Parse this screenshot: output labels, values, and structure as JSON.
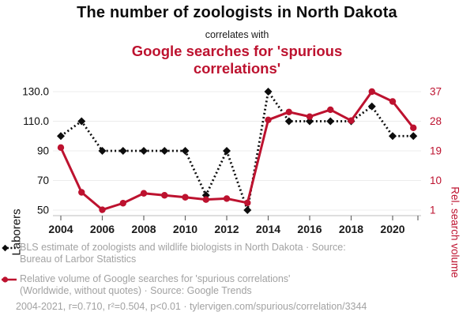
{
  "header": {
    "title_line1": "The number of zoologists in North Dakota",
    "connector": "correlates with",
    "title_line2": "Google searches for 'spurious correlations'"
  },
  "chart_data": {
    "type": "line",
    "x": [
      2004,
      2005,
      2006,
      2007,
      2008,
      2009,
      2010,
      2011,
      2012,
      2013,
      2014,
      2015,
      2016,
      2017,
      2018,
      2019,
      2020,
      2021
    ],
    "x_tick_labels": [
      "2004",
      "2006",
      "2008",
      "2010",
      "2012",
      "2014",
      "2016",
      "2018",
      "2020"
    ],
    "series": [
      {
        "name": "BLS estimate of zoologists and wildlife biologists in North Dakota",
        "axis": "left",
        "style": "dotted",
        "marker": "diamond",
        "color": "#0d0d0d",
        "values": [
          100,
          110,
          90,
          90,
          90,
          90,
          90,
          60,
          90,
          50,
          130,
          110,
          110,
          110,
          110,
          120,
          100,
          100
        ]
      },
      {
        "name": "Relative volume of Google searches for 'spurious correlations'",
        "axis": "right",
        "style": "solid",
        "marker": "circle",
        "color": "#bd122f",
        "values": [
          20,
          6.4,
          1.1,
          3.1,
          6.1,
          5.5,
          4.9,
          4.2,
          4.5,
          3.2,
          28.4,
          30.8,
          29.4,
          31.5,
          28.2,
          37,
          34,
          26
        ]
      }
    ],
    "left_axis": {
      "label": "Laborers",
      "tick_labels": [
        "130.0",
        "110.0",
        "90",
        "70",
        "50"
      ],
      "tick_values": [
        130,
        110,
        90,
        70,
        50
      ],
      "range": [
        50,
        130
      ]
    },
    "right_axis": {
      "label": "Rel. search volume",
      "tick_labels": [
        "37",
        "28",
        "19",
        "10",
        "1"
      ],
      "tick_values": [
        37,
        28,
        19,
        10,
        1
      ],
      "range": [
        1,
        37
      ]
    },
    "grid": true,
    "legend_position": "bottom"
  },
  "legend": {
    "items": [
      {
        "marker": "black-diamond-dotted-line",
        "lines": [
          "BLS estimate of zoologists and wildlife biologists in North Dakota · Source:",
          "Bureau of Larbor Statistics"
        ]
      },
      {
        "marker": "red-dot-solid-line",
        "lines": [
          "Relative volume of Google searches for 'spurious correlations'",
          "(Worldwide, without quotes) · Source: Google Trends"
        ]
      }
    ],
    "footnote": "2004-2021, r=0.710, r²=0.504, p<0.01 · tylervigen.com/spurious/correlation/3344"
  },
  "colors": {
    "accent_red": "#bd122f",
    "text_black": "#0d0d0d",
    "legend_gray": "#a2a2a2",
    "gridline": "#ececec",
    "axis_line": "#c9c9c9"
  }
}
